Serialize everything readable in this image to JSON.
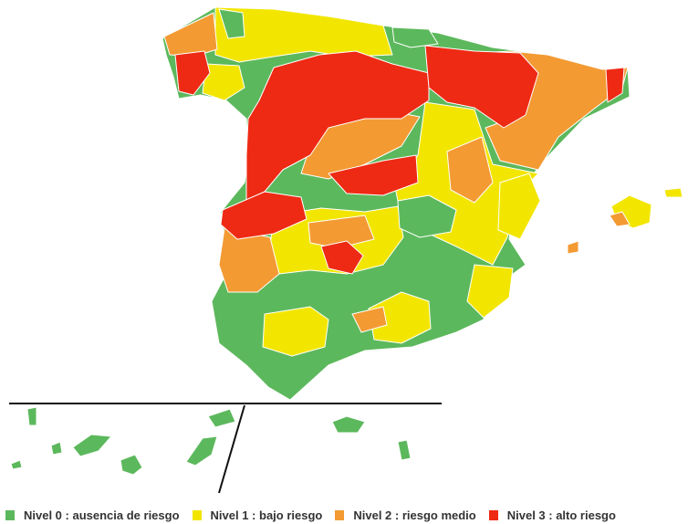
{
  "colors": {
    "nivel0": "#5cb85c",
    "nivel1": "#f2e600",
    "nivel2": "#f39a33",
    "nivel3": "#ee2a14",
    "border": "#ffffff",
    "divider": "#111111"
  },
  "legend": [
    {
      "label": "Nivel 0 : ausencia de riesgo",
      "color": "#5cb85c"
    },
    {
      "label": "Nivel 1 : bajo riesgo",
      "color": "#f2e600"
    },
    {
      "label": "Nivel 2 : riesgo medio",
      "color": "#f39a33"
    },
    {
      "label": "Nivel 3 : alto riesgo",
      "color": "#ee2a14"
    }
  ]
}
